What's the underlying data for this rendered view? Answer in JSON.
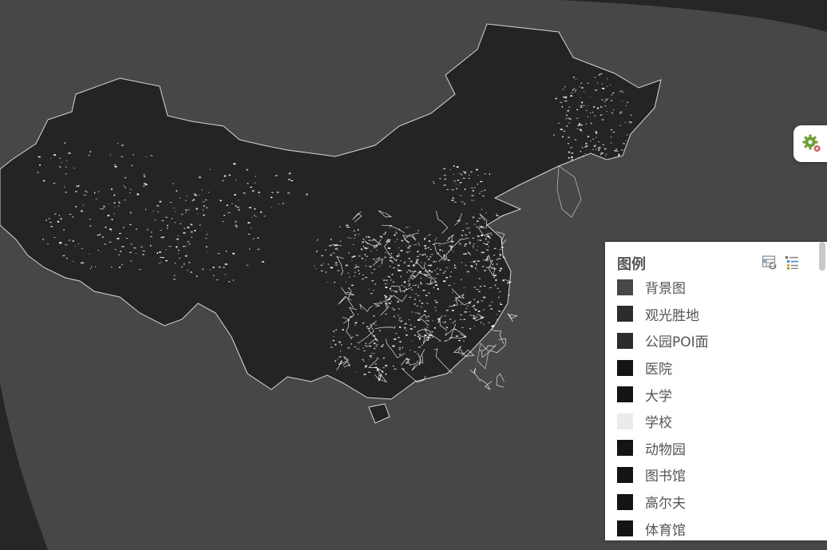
{
  "colors": {
    "outside": "#262626",
    "sea": "#474747",
    "land": "#242424",
    "detail": "#ffffff",
    "accent": "#6aa02f",
    "badge": "#e0464a"
  },
  "map": {
    "projection": "lambert-conic-curved-edges",
    "layers_visible": "dark-basemap-with-poi"
  },
  "settings": {
    "icon": "gear-icon"
  },
  "legend": {
    "title": "图例",
    "tools": [
      {
        "icon": "table-refresh-icon"
      },
      {
        "icon": "list-legend-icon"
      }
    ],
    "items": [
      {
        "label": "背景图",
        "color": "#474747"
      },
      {
        "label": "观光胜地",
        "color": "#2c2c2c"
      },
      {
        "label": "公园POI面",
        "color": "#2b2d2b"
      },
      {
        "label": "医院",
        "color": "#141414"
      },
      {
        "label": "大学",
        "color": "#141414"
      },
      {
        "label": "学校",
        "color": "#ebebeb"
      },
      {
        "label": "动物园",
        "color": "#141414"
      },
      {
        "label": "图书馆",
        "color": "#141414"
      },
      {
        "label": "高尔夫",
        "color": "#141414"
      },
      {
        "label": "体育馆",
        "color": "#141414"
      }
    ]
  }
}
